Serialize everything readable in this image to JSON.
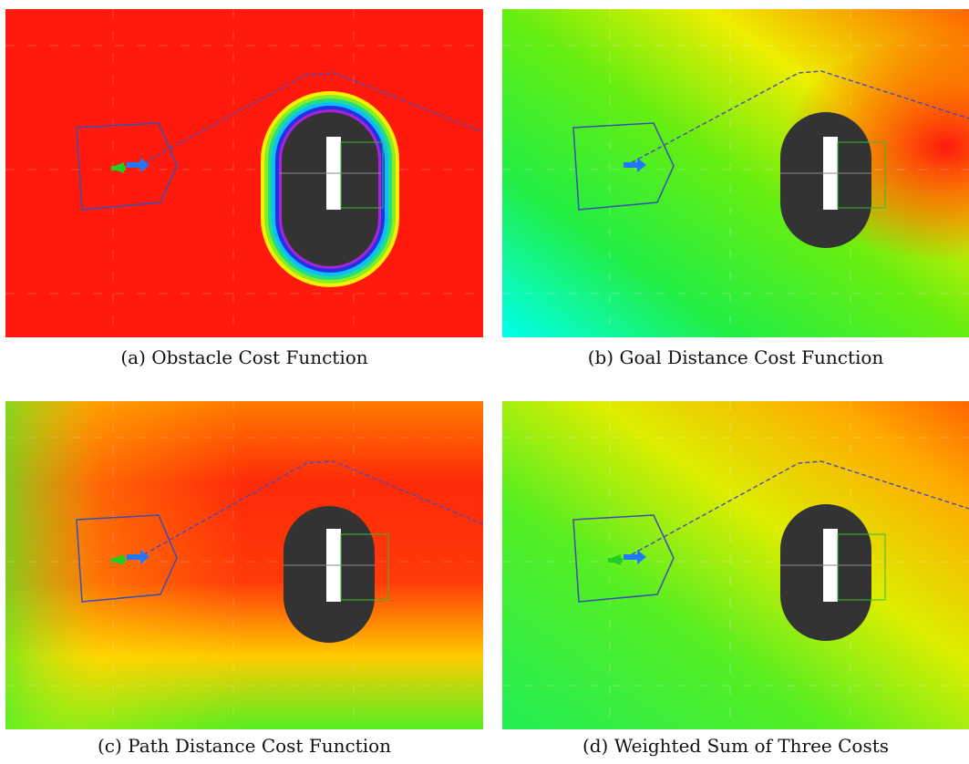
{
  "figure": {
    "panels": [
      {
        "key": "a",
        "caption": "(a) Obstacle Cost Function"
      },
      {
        "key": "b",
        "caption": "(b) Goal Distance Cost Function"
      },
      {
        "key": "c",
        "caption": "(c) Path Distance Cost Function"
      },
      {
        "key": "d",
        "caption": "(d) Weighted Sum of Three Costs"
      }
    ]
  },
  "colors": {
    "obstacle_red": "#ff1a0d",
    "obstacle_fill": "#333333",
    "robot_outline": "#3a4fb0",
    "plan_line": "#4a4ab8",
    "arrow_green": "#22cc22",
    "arrow_blue": "#2277ff",
    "footprint_green": "#33bb33",
    "white_block": "#ffffff"
  }
}
